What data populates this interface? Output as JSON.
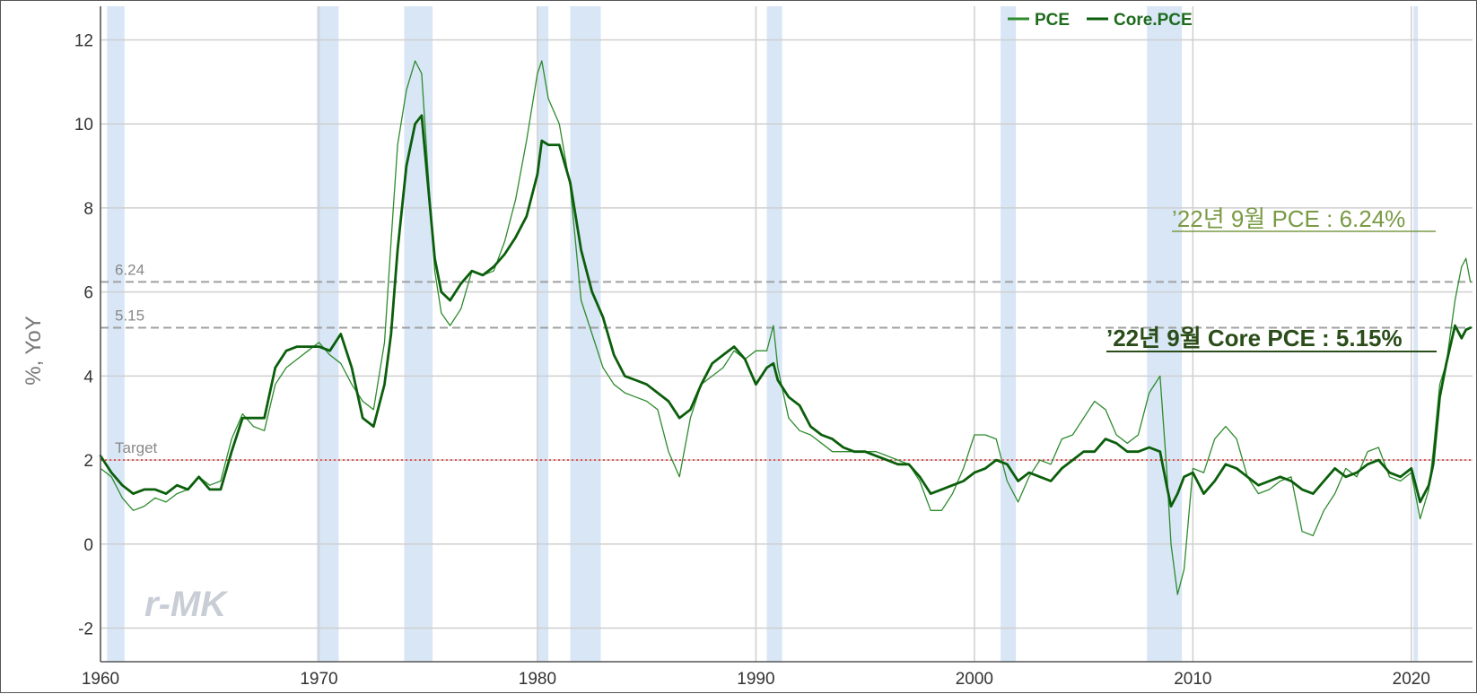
{
  "chart_data": {
    "type": "line",
    "ylabel": "%, YoY",
    "xlabel": "",
    "xlim": [
      1960,
      2022.8
    ],
    "ylim": [
      -2.8,
      12.8
    ],
    "x_ticks": [
      1960,
      1970,
      1980,
      1990,
      2000,
      2010,
      2020
    ],
    "y_ticks": [
      -2,
      0,
      2,
      4,
      6,
      8,
      10,
      12
    ],
    "grid": true,
    "legend_position": "top-center",
    "legend": [
      "PCE",
      "Core.PCE"
    ],
    "recessions": [
      [
        1960.3,
        1961.1
      ],
      [
        1969.9,
        1970.9
      ],
      [
        1973.9,
        1975.2
      ],
      [
        1980.0,
        1980.5
      ],
      [
        1981.5,
        1982.9
      ],
      [
        1990.5,
        1991.2
      ],
      [
        2001.2,
        2001.9
      ],
      [
        2007.9,
        2009.5
      ],
      [
        2020.1,
        2020.3
      ]
    ],
    "reference_lines": [
      {
        "value": 6.24,
        "label": "6.24",
        "color": "#a0a0a0",
        "style": "dashed"
      },
      {
        "value": 5.15,
        "label": "5.15",
        "color": "#a0a0a0",
        "style": "dashed"
      },
      {
        "value": 2.0,
        "label": "Target",
        "color": "#e05050",
        "style": "dotted"
      }
    ],
    "series": [
      {
        "name": "PCE",
        "color": "#2e8b2e",
        "width": 1.3,
        "x": [
          1960,
          1960.5,
          1961,
          1961.5,
          1962,
          1962.5,
          1963,
          1963.5,
          1964,
          1964.5,
          1965,
          1965.5,
          1966,
          1966.5,
          1967,
          1967.5,
          1968,
          1968.5,
          1969,
          1969.5,
          1970,
          1970.5,
          1971,
          1971.5,
          1972,
          1972.5,
          1973,
          1973.3,
          1973.6,
          1974,
          1974.4,
          1974.7,
          1975,
          1975.3,
          1975.6,
          1976,
          1976.5,
          1977,
          1977.5,
          1978,
          1978.5,
          1979,
          1979.5,
          1980,
          1980.2,
          1980.5,
          1981,
          1981.5,
          1982,
          1982.5,
          1983,
          1983.5,
          1984,
          1984.5,
          1985,
          1985.5,
          1986,
          1986.5,
          1987,
          1987.5,
          1988,
          1988.5,
          1989,
          1989.5,
          1990,
          1990.5,
          1990.8,
          1991,
          1991.5,
          1992,
          1992.5,
          1993,
          1993.5,
          1994,
          1994.5,
          1995,
          1995.5,
          1996,
          1996.5,
          1997,
          1997.5,
          1998,
          1998.5,
          1999,
          1999.5,
          2000,
          2000.5,
          2001,
          2001.5,
          2002,
          2002.5,
          2003,
          2003.5,
          2004,
          2004.5,
          2005,
          2005.5,
          2006,
          2006.5,
          2007,
          2007.5,
          2008,
          2008.5,
          2008.8,
          2009,
          2009.3,
          2009.6,
          2010,
          2010.5,
          2011,
          2011.5,
          2012,
          2012.5,
          2013,
          2013.5,
          2014,
          2014.5,
          2015,
          2015.5,
          2016,
          2016.5,
          2017,
          2017.5,
          2018,
          2018.5,
          2019,
          2019.5,
          2020,
          2020.4,
          2020.8,
          2021,
          2021.3,
          2021.6,
          2022,
          2022.3,
          2022.5,
          2022.7
        ],
        "y": [
          1.8,
          1.6,
          1.1,
          0.8,
          0.9,
          1.1,
          1.0,
          1.2,
          1.3,
          1.6,
          1.4,
          1.5,
          2.5,
          3.1,
          2.8,
          2.7,
          3.8,
          4.2,
          4.4,
          4.6,
          4.8,
          4.5,
          4.3,
          3.8,
          3.4,
          3.2,
          4.8,
          7.2,
          9.5,
          10.8,
          11.5,
          11.2,
          8.8,
          6.5,
          5.5,
          5.2,
          5.6,
          6.5,
          6.4,
          6.5,
          7.2,
          8.2,
          9.6,
          11.2,
          11.5,
          10.6,
          10.0,
          8.5,
          5.8,
          5.0,
          4.2,
          3.8,
          3.6,
          3.5,
          3.4,
          3.2,
          2.2,
          1.6,
          3.0,
          3.8,
          4.0,
          4.2,
          4.6,
          4.4,
          4.6,
          4.6,
          5.2,
          4.2,
          3.0,
          2.7,
          2.6,
          2.4,
          2.2,
          2.2,
          2.2,
          2.2,
          2.2,
          2.1,
          2.0,
          1.9,
          1.5,
          0.8,
          0.8,
          1.2,
          1.8,
          2.6,
          2.6,
          2.5,
          1.5,
          1.0,
          1.6,
          2.0,
          1.9,
          2.5,
          2.6,
          3.0,
          3.4,
          3.2,
          2.6,
          2.4,
          2.6,
          3.6,
          4.0,
          1.8,
          0.0,
          -1.2,
          -0.6,
          1.8,
          1.7,
          2.5,
          2.8,
          2.5,
          1.6,
          1.2,
          1.3,
          1.5,
          1.6,
          0.3,
          0.2,
          0.8,
          1.2,
          1.8,
          1.6,
          2.2,
          2.3,
          1.6,
          1.5,
          1.7,
          0.6,
          1.3,
          2.2,
          3.8,
          4.3,
          5.8,
          6.6,
          6.8,
          6.24
        ]
      },
      {
        "name": "Core.PCE",
        "color": "#0b5e0b",
        "width": 2.8,
        "x": [
          1960,
          1960.5,
          1961,
          1961.5,
          1962,
          1962.5,
          1963,
          1963.5,
          1964,
          1964.5,
          1965,
          1965.5,
          1966,
          1966.5,
          1967,
          1967.5,
          1968,
          1968.5,
          1969,
          1969.5,
          1970,
          1970.5,
          1971,
          1971.5,
          1972,
          1972.5,
          1973,
          1973.3,
          1973.6,
          1974,
          1974.4,
          1974.7,
          1975,
          1975.3,
          1975.6,
          1976,
          1976.5,
          1977,
          1977.5,
          1978,
          1978.5,
          1979,
          1979.5,
          1980,
          1980.2,
          1980.5,
          1981,
          1981.5,
          1982,
          1982.5,
          1983,
          1983.5,
          1984,
          1984.5,
          1985,
          1985.5,
          1986,
          1986.5,
          1987,
          1987.5,
          1988,
          1988.5,
          1989,
          1989.5,
          1990,
          1990.5,
          1990.8,
          1991,
          1991.5,
          1992,
          1992.5,
          1993,
          1993.5,
          1994,
          1994.5,
          1995,
          1995.5,
          1996,
          1996.5,
          1997,
          1997.5,
          1998,
          1998.5,
          1999,
          1999.5,
          2000,
          2000.5,
          2001,
          2001.5,
          2002,
          2002.5,
          2003,
          2003.5,
          2004,
          2004.5,
          2005,
          2005.5,
          2006,
          2006.5,
          2007,
          2007.5,
          2008,
          2008.5,
          2008.8,
          2009,
          2009.3,
          2009.6,
          2010,
          2010.5,
          2011,
          2011.5,
          2012,
          2012.5,
          2013,
          2013.5,
          2014,
          2014.5,
          2015,
          2015.5,
          2016,
          2016.5,
          2017,
          2017.5,
          2018,
          2018.5,
          2019,
          2019.5,
          2020,
          2020.4,
          2020.8,
          2021,
          2021.3,
          2021.6,
          2022,
          2022.3,
          2022.5,
          2022.7
        ],
        "y": [
          2.1,
          1.7,
          1.4,
          1.2,
          1.3,
          1.3,
          1.2,
          1.4,
          1.3,
          1.6,
          1.3,
          1.3,
          2.2,
          3.0,
          3.0,
          3.0,
          4.2,
          4.6,
          4.7,
          4.7,
          4.7,
          4.6,
          5.0,
          4.2,
          3.0,
          2.8,
          3.8,
          5.0,
          7.0,
          9.0,
          10.0,
          10.2,
          8.5,
          6.8,
          6.0,
          5.8,
          6.2,
          6.5,
          6.4,
          6.6,
          6.9,
          7.3,
          7.8,
          8.8,
          9.6,
          9.5,
          9.5,
          8.6,
          7.0,
          6.0,
          5.4,
          4.5,
          4.0,
          3.9,
          3.8,
          3.6,
          3.4,
          3.0,
          3.2,
          3.8,
          4.3,
          4.5,
          4.7,
          4.4,
          3.8,
          4.2,
          4.3,
          3.9,
          3.5,
          3.3,
          2.8,
          2.6,
          2.5,
          2.3,
          2.2,
          2.2,
          2.1,
          2.0,
          1.9,
          1.9,
          1.6,
          1.2,
          1.3,
          1.4,
          1.5,
          1.7,
          1.8,
          2.0,
          1.9,
          1.5,
          1.7,
          1.6,
          1.5,
          1.8,
          2.0,
          2.2,
          2.2,
          2.5,
          2.4,
          2.2,
          2.2,
          2.3,
          2.2,
          1.4,
          0.9,
          1.2,
          1.6,
          1.7,
          1.2,
          1.5,
          1.9,
          1.8,
          1.6,
          1.4,
          1.5,
          1.6,
          1.5,
          1.3,
          1.2,
          1.5,
          1.8,
          1.6,
          1.7,
          1.9,
          2.0,
          1.7,
          1.6,
          1.8,
          1.0,
          1.4,
          1.9,
          3.5,
          4.3,
          5.2,
          4.9,
          5.1,
          5.15
        ]
      }
    ],
    "annotations": [
      {
        "text": "’22년 9월 PCE : 6.24%",
        "color": "#7a9a45"
      },
      {
        "text": "’22년 9월 Core PCE : 5.15%",
        "color": "#2b4d1a"
      }
    ]
  },
  "watermark": "r-MK"
}
